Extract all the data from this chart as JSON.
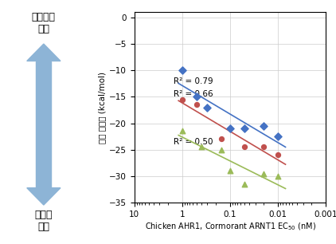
{
  "xlabel": "Chicken AHR1, Cormorant ARNT1 EC$_{50}$ (nM)",
  "ylabel": "결합 에너지 (kcal/mol)",
  "ylim": [
    -35,
    1
  ],
  "yticks": [
    0,
    -5,
    -10,
    -15,
    -20,
    -25,
    -30,
    -35
  ],
  "blue_x": [
    1.0,
    0.5,
    0.3,
    0.1,
    0.05,
    0.02,
    0.01
  ],
  "blue_y": [
    -10.0,
    -15.0,
    -17.0,
    -21.0,
    -21.0,
    -20.5,
    -22.5
  ],
  "red_x": [
    1.0,
    0.5,
    0.15,
    0.05,
    0.02,
    0.01
  ],
  "red_y": [
    -15.5,
    -16.5,
    -23.0,
    -24.5,
    -24.5,
    -26.0
  ],
  "green_x": [
    1.0,
    0.4,
    0.15,
    0.1,
    0.05,
    0.02,
    0.01
  ],
  "green_y": [
    -21.5,
    -24.5,
    -25.0,
    -29.0,
    -31.5,
    -29.5,
    -30.0
  ],
  "blue_color": "#4472C4",
  "red_color": "#C0504D",
  "green_color": "#9BBB59",
  "r2_blue": "R² = 0.79",
  "r2_red": "R² = 0.66",
  "r2_green": "R² = 0.50",
  "label_unstable": "불안정한\n결합",
  "label_stable": "안정한\n결합",
  "bg_color": "#FFFFFF",
  "grid_color": "#CCCCCC",
  "arrow_color": "#8DB4D6"
}
